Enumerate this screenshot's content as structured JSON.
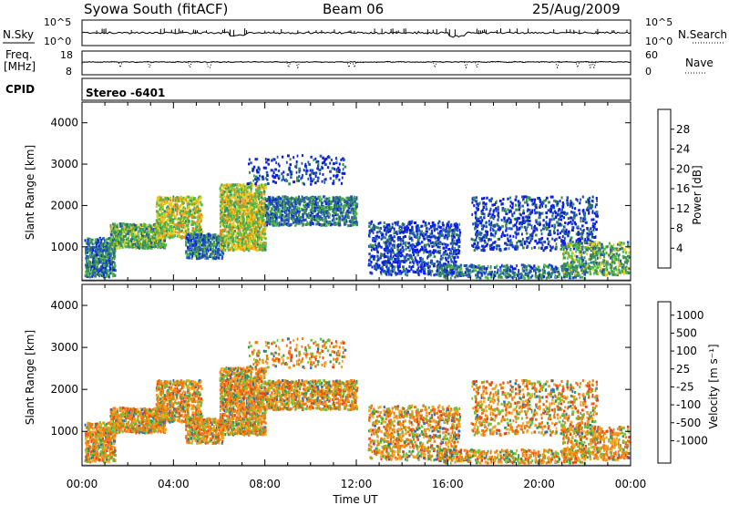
{
  "header": {
    "station": "Syowa South (fitACF)",
    "beam": "Beam 06",
    "date": "25/Aug/2009"
  },
  "top_panels": {
    "nsky_label": "N.Sky",
    "nsky_ticks": [
      "10^5",
      "10^0"
    ],
    "nsearch_label": "N.Search",
    "nsearch_ticks": [
      "10^5",
      "10^0"
    ],
    "freq_label_1": "Freq.",
    "freq_label_2": "[MHz]",
    "freq_ticks": [
      "18",
      "8"
    ],
    "nave_label": "Nave",
    "nave_ticks": [
      "60",
      "0"
    ],
    "cpid_label": "CPID",
    "cpid_value": "Stereo -6401"
  },
  "chart_data": [
    {
      "type": "heatmap",
      "title": "",
      "xlabel": "",
      "ylabel": "Slant Range [km]",
      "colorbar_label": "Power [dB]",
      "colorbar_ticks": [
        "4",
        "8",
        "12",
        "16",
        "20",
        "24",
        "28"
      ],
      "colorbar_colors": [
        "#0a1ee6",
        "#1f4fb5",
        "#3c8c5a",
        "#4fb84a",
        "#e6cc1f",
        "#f08c1a",
        "#e8561a",
        "#e01515"
      ],
      "x_range_hours": [
        0,
        24
      ],
      "ylim": [
        180,
        4500
      ],
      "y_ticks": [
        "1000",
        "2000",
        "3000",
        "4000"
      ],
      "regions": [
        {
          "t0": 0.1,
          "t1": 1.4,
          "r0": 250,
          "r1": 1200,
          "density": 0.55,
          "level": 1
        },
        {
          "t0": 1.2,
          "t1": 3.6,
          "r0": 950,
          "r1": 1550,
          "density": 0.6,
          "level": 2
        },
        {
          "t0": 3.2,
          "t1": 5.2,
          "r0": 1200,
          "r1": 2200,
          "density": 0.45,
          "level": 3
        },
        {
          "t0": 4.5,
          "t1": 6.2,
          "r0": 700,
          "r1": 1300,
          "density": 0.5,
          "level": 1
        },
        {
          "t0": 6.0,
          "t1": 8.0,
          "r0": 900,
          "r1": 2500,
          "density": 0.55,
          "level": 3
        },
        {
          "t0": 8.0,
          "t1": 12.0,
          "r0": 1500,
          "r1": 2200,
          "density": 0.45,
          "level": 1
        },
        {
          "t0": 7.2,
          "t1": 11.5,
          "r0": 2500,
          "r1": 3200,
          "density": 0.12,
          "level": 0
        },
        {
          "t0": 12.5,
          "t1": 16.5,
          "r0": 300,
          "r1": 1600,
          "density": 0.25,
          "level": 0
        },
        {
          "t0": 15.5,
          "t1": 22.0,
          "r0": 230,
          "r1": 550,
          "density": 0.35,
          "level": 1
        },
        {
          "t0": 17.0,
          "t1": 22.5,
          "r0": 900,
          "r1": 2200,
          "density": 0.18,
          "level": 0
        },
        {
          "t0": 21.0,
          "t1": 23.9,
          "r0": 300,
          "r1": 1100,
          "density": 0.3,
          "level": 2
        }
      ]
    },
    {
      "type": "heatmap",
      "title": "",
      "xlabel": "Time UT",
      "ylabel": "Slant Range [km]",
      "colorbar_label": "Velocity [m s⁻¹]",
      "colorbar_ticks": [
        "1000",
        "500",
        "100",
        "25",
        "-25",
        "-100",
        "-500",
        "-1000"
      ],
      "colorbar_colors": [
        "#1a2ad8",
        "#2f6fb0",
        "#3a9a55",
        "#6cc43c",
        "#c8c8c8",
        "#f5a21f",
        "#f07a12",
        "#e8461a",
        "#e01515"
      ],
      "x_range_hours": [
        0,
        24
      ],
      "x_ticks": [
        "00:00",
        "04:00",
        "08:00",
        "12:00",
        "16:00",
        "20:00",
        "00:00"
      ],
      "ylim": [
        180,
        4500
      ],
      "y_ticks": [
        "1000",
        "2000",
        "3000",
        "4000"
      ]
    }
  ]
}
